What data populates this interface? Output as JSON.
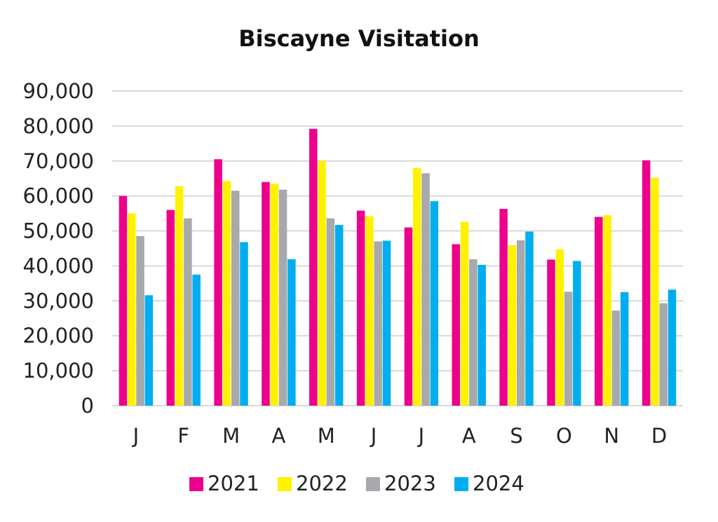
{
  "chart_data": {
    "type": "bar",
    "title": "Biscayne Visitation",
    "xlabel": "",
    "ylabel": "",
    "categories": [
      "J",
      "F",
      "M",
      "A",
      "M",
      "J",
      "J",
      "A",
      "S",
      "O",
      "N",
      "D"
    ],
    "ylim": [
      0,
      90000
    ],
    "yticks": [
      0,
      10000,
      20000,
      30000,
      40000,
      50000,
      60000,
      70000,
      80000,
      90000
    ],
    "ytick_labels": [
      "0",
      "10,000",
      "20,000",
      "30,000",
      "40,000",
      "50,000",
      "60,000",
      "70,000",
      "80,000",
      "90,000"
    ],
    "grid": true,
    "legend_position": "bottom",
    "series": [
      {
        "name": "2021",
        "color": "#ec008c",
        "values": [
          60000,
          56000,
          70500,
          64000,
          79200,
          55800,
          51000,
          46200,
          56300,
          41800,
          54000,
          70200
        ]
      },
      {
        "name": "2022",
        "color": "#fff200",
        "values": [
          55000,
          62800,
          64300,
          63500,
          70000,
          54200,
          68000,
          52600,
          45900,
          44700,
          54500,
          65200
        ]
      },
      {
        "name": "2023",
        "color": "#a7a9ac",
        "values": [
          48500,
          53600,
          61500,
          61800,
          53600,
          47000,
          66500,
          41900,
          47300,
          32600,
          27200,
          29300
        ]
      },
      {
        "name": "2024",
        "color": "#00aeef",
        "values": [
          31600,
          37500,
          46800,
          41900,
          51700,
          47200,
          58500,
          40300,
          49800,
          41400,
          32500,
          33200
        ]
      }
    ]
  }
}
